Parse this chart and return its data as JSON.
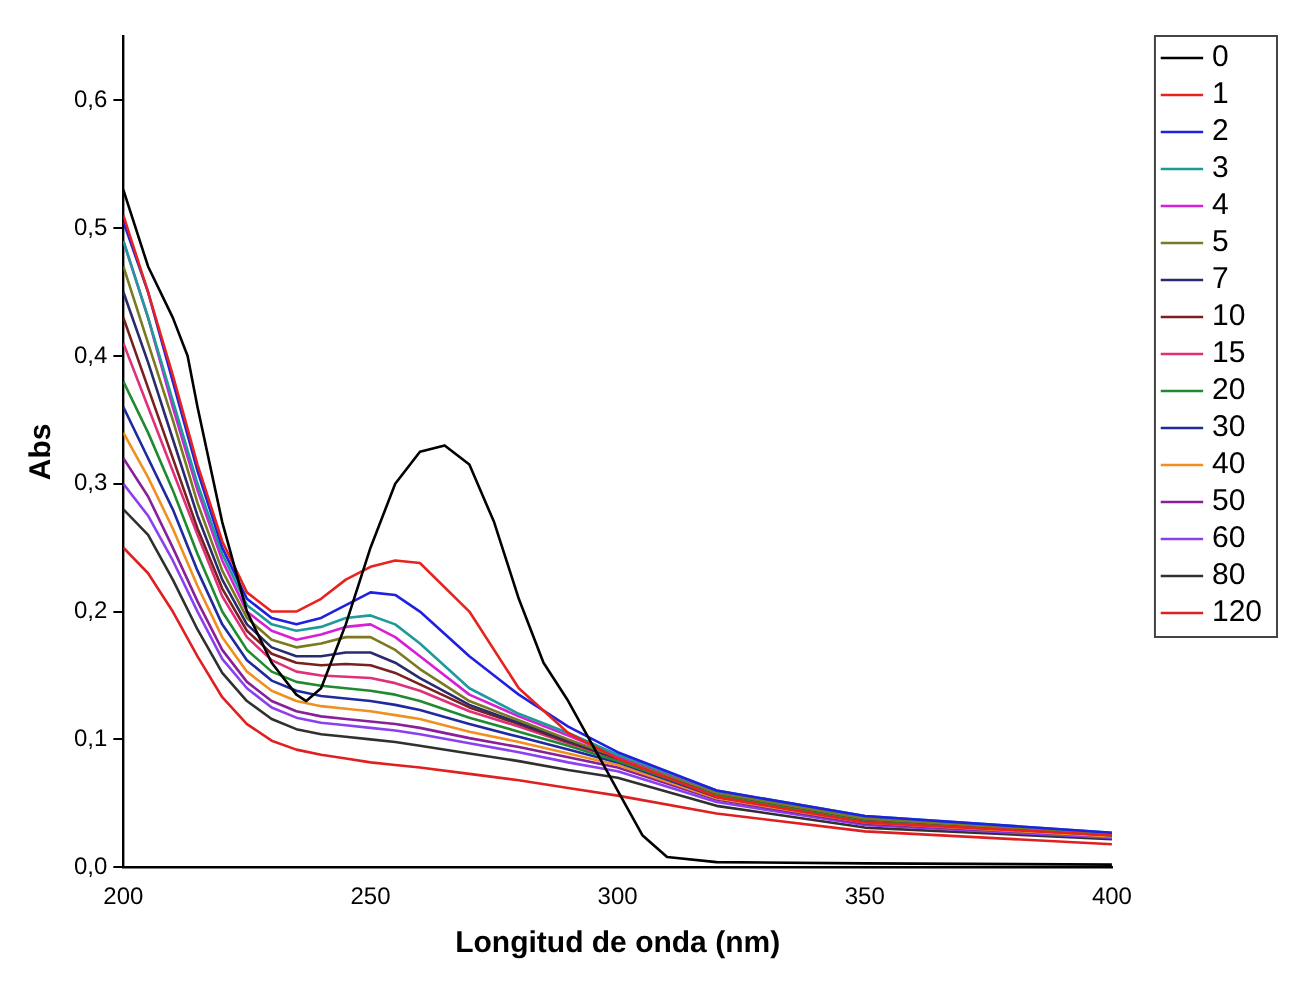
{
  "chart_data": {
    "type": "line",
    "xlabel": "Longitud de onda (nm)",
    "ylabel": "Abs",
    "x": [
      200,
      205,
      210,
      215,
      220,
      225,
      230,
      235,
      240,
      245,
      250,
      255,
      260,
      270,
      280,
      290,
      300,
      320,
      350,
      400
    ],
    "xlim": [
      200,
      400
    ],
    "xticks": [
      200,
      250,
      300,
      350,
      400
    ],
    "ylim": [
      0,
      0.65
    ],
    "yticks": [
      {
        "value": 0,
        "label": "0,0"
      },
      {
        "value": 0.1,
        "label": "0,1"
      },
      {
        "value": 0.2,
        "label": "0,2"
      },
      {
        "value": 0.3,
        "label": "0,3"
      },
      {
        "value": 0.4,
        "label": "0,4"
      },
      {
        "value": 0.5,
        "label": "0,5"
      },
      {
        "value": 0.6,
        "label": "0,6"
      }
    ],
    "grid": false,
    "legend": "top right",
    "marker": "none",
    "line_style": "solid",
    "series": [
      {
        "name": "0",
        "color": "#000000",
        "x": [
          200,
          205,
          210,
          213,
          215,
          220,
          225,
          230,
          235,
          237,
          240,
          245,
          250,
          255,
          260,
          265,
          270,
          275,
          280,
          285,
          290,
          295,
          300,
          305,
          310,
          320,
          350,
          400
        ],
        "values": [
          0.53,
          0.47,
          0.43,
          0.4,
          0.36,
          0.27,
          0.2,
          0.16,
          0.135,
          0.13,
          0.14,
          0.19,
          0.25,
          0.3,
          0.325,
          0.33,
          0.315,
          0.27,
          0.21,
          0.16,
          0.13,
          0.095,
          0.06,
          0.025,
          0.008,
          0.004,
          0.003,
          0.002
        ]
      },
      {
        "name": "1",
        "color": "#e8231f",
        "values": [
          0.51,
          0.45,
          0.385,
          0.315,
          0.255,
          0.215,
          0.2,
          0.2,
          0.21,
          0.225,
          0.235,
          0.24,
          0.238,
          0.2,
          0.14,
          0.105,
          0.085,
          0.055,
          0.035,
          0.025
        ]
      },
      {
        "name": "2",
        "color": "#2020e0",
        "values": [
          0.505,
          0.45,
          0.38,
          0.31,
          0.25,
          0.21,
          0.195,
          0.19,
          0.195,
          0.205,
          0.215,
          0.213,
          0.2,
          0.165,
          0.135,
          0.11,
          0.09,
          0.06,
          0.04,
          0.027
        ]
      },
      {
        "name": "3",
        "color": "#1f9a9a",
        "values": [
          0.49,
          0.43,
          0.365,
          0.3,
          0.245,
          0.205,
          0.19,
          0.185,
          0.188,
          0.195,
          0.197,
          0.19,
          0.175,
          0.14,
          0.12,
          0.105,
          0.088,
          0.06,
          0.04,
          0.027
        ]
      },
      {
        "name": "4",
        "color": "#d61fd6",
        "values": [
          0.49,
          0.43,
          0.36,
          0.295,
          0.24,
          0.2,
          0.185,
          0.178,
          0.182,
          0.188,
          0.19,
          0.18,
          0.165,
          0.135,
          0.118,
          0.103,
          0.087,
          0.06,
          null,
          null
        ]
      },
      {
        "name": "5",
        "color": "#7a7a20",
        "values": [
          0.47,
          0.41,
          0.35,
          0.285,
          0.232,
          0.195,
          0.178,
          0.172,
          0.175,
          0.18,
          0.18,
          0.17,
          0.155,
          0.13,
          0.115,
          0.1,
          0.086,
          0.058,
          0.038,
          0.026
        ]
      },
      {
        "name": "7",
        "color": "#2a2a6e",
        "values": [
          0.45,
          0.395,
          0.335,
          0.275,
          0.225,
          0.19,
          0.172,
          0.165,
          0.165,
          0.168,
          0.168,
          0.16,
          0.148,
          0.127,
          0.113,
          0.099,
          0.085,
          0.058,
          0.038,
          0.026
        ]
      },
      {
        "name": "10",
        "color": "#7a2020",
        "values": [
          0.43,
          0.375,
          0.32,
          0.265,
          0.218,
          0.185,
          0.167,
          0.16,
          0.158,
          0.159,
          0.158,
          0.152,
          0.143,
          0.125,
          0.112,
          0.098,
          0.085,
          0.058,
          0.038,
          0.026
        ]
      },
      {
        "name": "15",
        "color": "#e0307a",
        "values": [
          0.41,
          0.36,
          0.31,
          0.26,
          0.212,
          0.18,
          0.162,
          0.153,
          0.15,
          0.149,
          0.148,
          0.144,
          0.138,
          0.122,
          0.11,
          0.097,
          0.085,
          0.058,
          0.038,
          0.026
        ]
      },
      {
        "name": "20",
        "color": "#1f8a30",
        "values": [
          0.38,
          0.34,
          0.295,
          0.245,
          0.2,
          0.17,
          0.153,
          0.145,
          0.142,
          0.14,
          0.138,
          0.135,
          0.13,
          0.117,
          0.106,
          0.095,
          0.083,
          0.056,
          0.037,
          0.025
        ]
      },
      {
        "name": "30",
        "color": "#1f2aa0",
        "values": [
          0.36,
          0.32,
          0.28,
          0.232,
          0.19,
          0.162,
          0.146,
          0.138,
          0.134,
          0.132,
          0.13,
          0.127,
          0.123,
          0.112,
          0.102,
          0.092,
          0.082,
          0.055,
          0.036,
          0.025
        ]
      },
      {
        "name": "40",
        "color": "#f09020",
        "values": [
          0.34,
          0.305,
          0.265,
          0.22,
          0.18,
          0.153,
          0.138,
          0.13,
          0.126,
          0.124,
          0.122,
          0.119,
          0.116,
          0.106,
          0.098,
          0.089,
          0.08,
          0.054,
          0.035,
          0.024
        ]
      },
      {
        "name": "50",
        "color": "#8a1f9a",
        "values": [
          0.32,
          0.29,
          0.25,
          0.208,
          0.17,
          0.145,
          0.13,
          0.122,
          0.118,
          0.116,
          0.114,
          0.112,
          0.109,
          0.101,
          0.094,
          0.086,
          0.078,
          0.053,
          0.034,
          0.024
        ]
      },
      {
        "name": "60",
        "color": "#8a40f0",
        "values": [
          0.3,
          0.275,
          0.24,
          0.2,
          0.163,
          0.14,
          0.125,
          0.117,
          0.113,
          0.111,
          0.109,
          0.107,
          0.104,
          0.097,
          0.09,
          0.082,
          0.075,
          0.051,
          0.033,
          0.023
        ]
      },
      {
        "name": "80",
        "color": "#303030",
        "values": [
          0.28,
          0.26,
          0.225,
          0.186,
          0.152,
          0.13,
          0.116,
          0.108,
          0.104,
          0.102,
          0.1,
          0.098,
          0.095,
          0.089,
          0.083,
          0.076,
          0.07,
          0.048,
          0.031,
          0.022
        ]
      },
      {
        "name": "120",
        "color": "#e02020",
        "values": [
          0.25,
          0.23,
          0.2,
          0.165,
          0.133,
          0.112,
          0.099,
          0.092,
          0.088,
          0.085,
          0.082,
          0.08,
          0.078,
          0.073,
          0.068,
          0.062,
          0.056,
          0.042,
          0.028,
          0.018
        ]
      }
    ]
  }
}
